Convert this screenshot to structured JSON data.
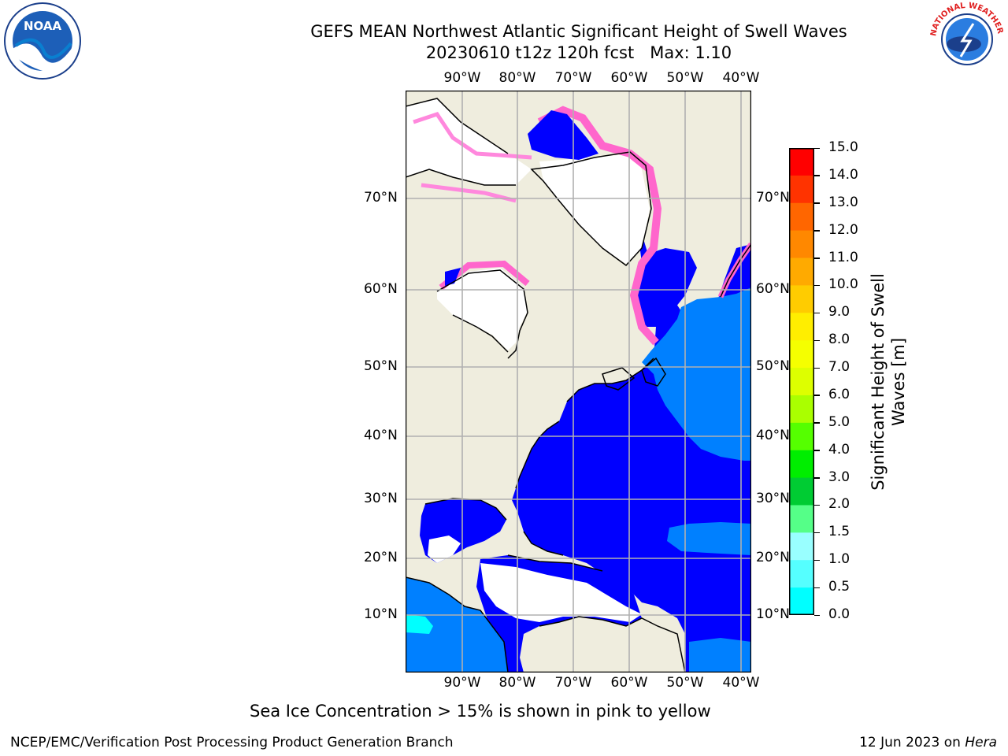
{
  "title": {
    "line1": "GEFS MEAN Northwest Atlantic Significant Height of Swell Waves",
    "line2": "20230610 t12z 120h fcst   Max: 1.10"
  },
  "map": {
    "lon_labels": [
      "90°W",
      "80°W",
      "70°W",
      "60°W",
      "50°W",
      "40°W"
    ],
    "lat_labels": [
      "70°N",
      "60°N",
      "50°N",
      "40°N",
      "30°N",
      "20°N",
      "10°N"
    ],
    "colors": {
      "land": "#efedde",
      "ocean_low": "#0000ff",
      "ocean_mid": "#0080ff",
      "cyan": "#00ffff",
      "ice": "#ff66cc",
      "grid": "#b0b0b0"
    }
  },
  "colorbar": {
    "label_line1": "Significant Height of Swell",
    "label_line2": "Waves [m]",
    "ticks": [
      "15.0",
      "14.0",
      "13.0",
      "12.0",
      "11.0",
      "10.0",
      "9.0",
      "8.0",
      "7.0",
      "6.0",
      "5.0",
      "4.0",
      "3.0",
      "2.0",
      "1.5",
      "1.0",
      "0.5",
      "0.0"
    ],
    "colors_top_to_bottom": [
      "#ff0000",
      "#ff3300",
      "#ff6600",
      "#ff8800",
      "#ffaa00",
      "#ffcc00",
      "#ffee00",
      "#f5ff00",
      "#ddff00",
      "#aaff00",
      "#55ff00",
      "#00ee00",
      "#00cc33",
      "#55ff88",
      "#99ffff",
      "#55ffff",
      "#00ffff",
      "#0080ff",
      "#0000ff"
    ]
  },
  "caption": "Sea Ice Concentration > 15% is shown in pink to yellow",
  "footer": {
    "left": "NCEP/EMC/Verification Post Processing Product Generation Branch",
    "date": "12 Jun 2023 on ",
    "host": "Hera"
  },
  "logos": {
    "noaa_text": "NOAA",
    "nws_text": "NATIONAL WEATHER SERVICE"
  }
}
